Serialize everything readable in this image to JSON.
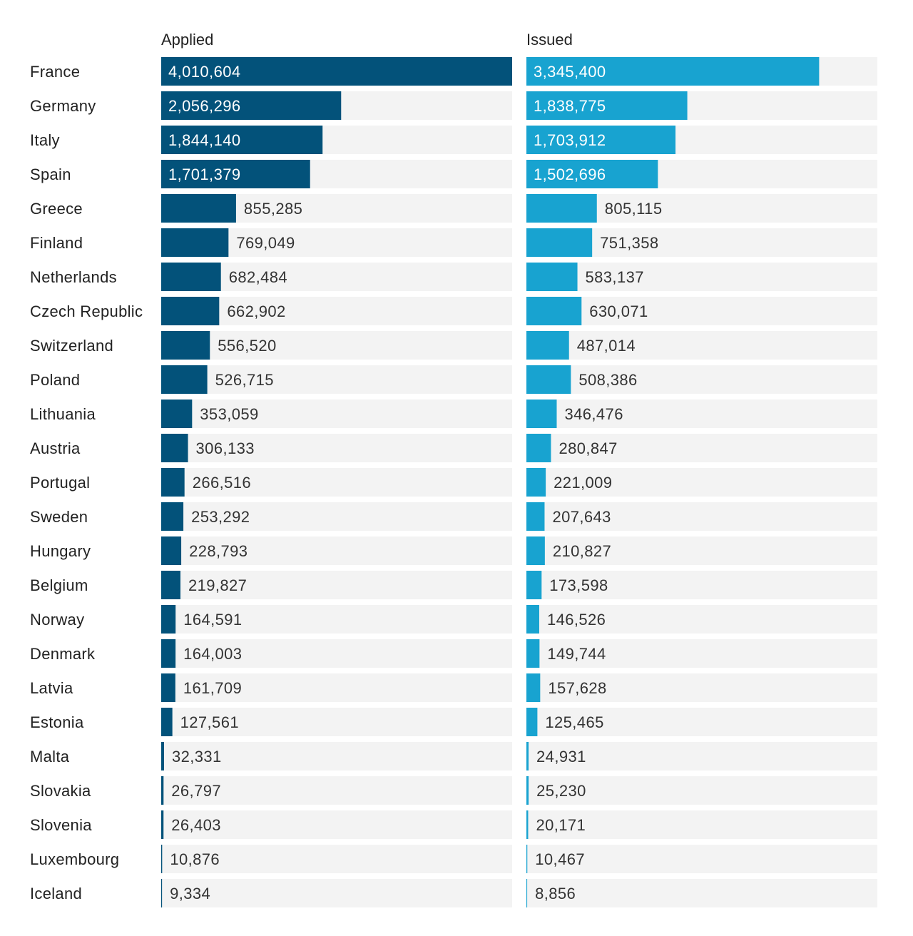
{
  "chart_data": {
    "type": "bar",
    "series": [
      {
        "name": "Applied",
        "color": "#03527A",
        "values": [
          4010604,
          2056296,
          1844140,
          1701379,
          855285,
          769049,
          682484,
          662902,
          556520,
          526715,
          353059,
          306133,
          266516,
          253292,
          228793,
          219827,
          164591,
          164003,
          161709,
          127561,
          32331,
          26797,
          26403,
          10876,
          9334
        ],
        "labels": [
          "4,010,604",
          "2,056,296",
          "1,844,140",
          "1,701,379",
          "855,285",
          "769,049",
          "682,484",
          "662,902",
          "556,520",
          "526,715",
          "353,059",
          "306,133",
          "266,516",
          "253,292",
          "228,793",
          "219,827",
          "164,591",
          "164,003",
          "161,709",
          "127,561",
          "32,331",
          "26,797",
          "26,403",
          "10,876",
          "9,334"
        ]
      },
      {
        "name": "Issued",
        "color": "#18A3D0",
        "values": [
          3345400,
          1838775,
          1703912,
          1502696,
          805115,
          751358,
          583137,
          630071,
          487014,
          508386,
          346476,
          280847,
          221009,
          207643,
          210827,
          173598,
          146526,
          149744,
          157628,
          125465,
          24931,
          25230,
          20171,
          10467,
          8856
        ],
        "labels": [
          "3,345,400",
          "1,838,775",
          "1,703,912",
          "1,502,696",
          "805,115",
          "751,358",
          "583,137",
          "630,071",
          "487,014",
          "508,386",
          "346,476",
          "280,847",
          "221,009",
          "207,643",
          "210,827",
          "173,598",
          "146,526",
          "149,744",
          "157,628",
          "125,465",
          "24,931",
          "25,230",
          "20,171",
          "10,467",
          "8,856"
        ]
      }
    ],
    "categories": [
      "France",
      "Germany",
      "Italy",
      "Spain",
      "Greece",
      "Finland",
      "Netherlands",
      "Czech Republic",
      "Switzerland",
      "Poland",
      "Lithuania",
      "Austria",
      "Portugal",
      "Sweden",
      "Hungary",
      "Belgium",
      "Norway",
      "Denmark",
      "Latvia",
      "Estonia",
      "Malta",
      "Slovakia",
      "Slovenia",
      "Luxembourg",
      "Iceland"
    ],
    "xlim": [
      0,
      4010604
    ],
    "track_color": "#F3F3F3",
    "label_inside_color": "#FFFFFF",
    "label_outside_color": "#333333"
  }
}
